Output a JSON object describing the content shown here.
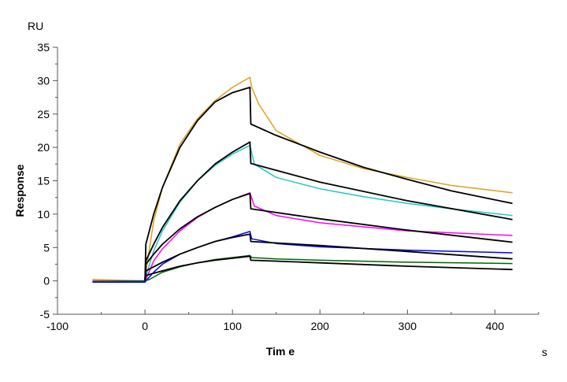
{
  "chart_data": {
    "type": "line",
    "title": "",
    "unit_label_y": "RU",
    "ylabel": "Response",
    "xlabel": "Tim e",
    "unit_label_x": "s",
    "xlim": [
      -100,
      450
    ],
    "ylim": [
      -5,
      35
    ],
    "x_ticks": [
      -100,
      0,
      100,
      200,
      300,
      400
    ],
    "x_minor_ticks": [
      -50,
      50,
      150,
      250,
      350,
      450
    ],
    "y_ticks": [
      -5,
      0,
      5,
      10,
      15,
      20,
      25,
      30,
      35
    ],
    "grid": false,
    "legend": "none",
    "series": [
      {
        "kind": "measured",
        "color": "#E0A020",
        "x": [
          -60,
          0,
          3,
          10,
          20,
          40,
          60,
          80,
          100,
          120,
          122,
          130,
          150,
          200,
          250,
          300,
          350,
          420
        ],
        "y": [
          0.2,
          0,
          3,
          9,
          14,
          20.5,
          24.3,
          27,
          29,
          30.5,
          29,
          26.5,
          22.5,
          18.8,
          16.8,
          15.5,
          14.3,
          13.2
        ]
      },
      {
        "kind": "fit",
        "color": "#000000",
        "x": [
          0,
          1,
          10,
          20,
          40,
          60,
          80,
          100,
          120,
          121,
          150,
          200,
          250,
          300,
          350,
          420
        ],
        "y": [
          0,
          5.5,
          10,
          14,
          20,
          24,
          26.8,
          28.2,
          29,
          23.5,
          21.8,
          19.3,
          17,
          15.2,
          13.5,
          11.6
        ]
      },
      {
        "kind": "measured",
        "color": "#20C8C8",
        "x": [
          -60,
          0,
          3,
          10,
          20,
          40,
          60,
          80,
          100,
          120,
          125,
          150,
          200,
          250,
          300,
          350,
          420
        ],
        "y": [
          0,
          0,
          1.5,
          4.5,
          7.5,
          11.8,
          15,
          17.3,
          19,
          20.3,
          17.5,
          15.5,
          13.8,
          12.6,
          11.6,
          10.8,
          9.8
        ]
      },
      {
        "kind": "fit",
        "color": "#000000",
        "x": [
          0,
          1,
          10,
          20,
          40,
          60,
          80,
          100,
          120,
          121,
          200,
          300,
          420
        ],
        "y": [
          0,
          3,
          5.5,
          8,
          12,
          15,
          17.5,
          19.3,
          20.8,
          17.6,
          14.8,
          12,
          9.2
        ]
      },
      {
        "kind": "measured",
        "color": "#FF00FF",
        "x": [
          -60,
          0,
          3,
          10,
          20,
          40,
          60,
          80,
          100,
          120,
          125,
          150,
          200,
          300,
          420
        ],
        "y": [
          0,
          0,
          0.8,
          3,
          4.8,
          7.5,
          9.5,
          11,
          12.2,
          13.2,
          11.2,
          9.8,
          8.7,
          7.5,
          6.8
        ]
      },
      {
        "kind": "fit",
        "color": "#000000",
        "x": [
          0,
          1,
          10,
          20,
          40,
          60,
          80,
          100,
          120,
          121,
          200,
          300,
          420
        ],
        "y": [
          0,
          2.5,
          4,
          5.5,
          7.8,
          9.6,
          11,
          12.2,
          13.1,
          10.8,
          9.3,
          7.6,
          5.8
        ]
      },
      {
        "kind": "measured",
        "color": "#0000FF",
        "x": [
          -60,
          0,
          3,
          10,
          20,
          40,
          60,
          80,
          100,
          120,
          122,
          150,
          200,
          300,
          420
        ],
        "y": [
          -0.2,
          -0.2,
          0.3,
          1.3,
          2.5,
          4,
          5,
          5.9,
          6.6,
          7.4,
          6.3,
          5.6,
          5.1,
          4.6,
          4.2
        ]
      },
      {
        "kind": "fit",
        "color": "#000000",
        "x": [
          0,
          1,
          20,
          40,
          60,
          80,
          100,
          120,
          121,
          200,
          300,
          420
        ],
        "y": [
          0,
          1.5,
          2.8,
          4,
          5,
          5.9,
          6.5,
          7,
          5.9,
          5.3,
          4.4,
          3.3
        ]
      },
      {
        "kind": "measured",
        "color": "#006400",
        "x": [
          -60,
          0,
          5,
          20,
          40,
          60,
          80,
          100,
          120,
          122,
          150,
          200,
          300,
          420
        ],
        "y": [
          -0.1,
          0,
          0.2,
          1.3,
          2.1,
          2.7,
          3.2,
          3.5,
          3.8,
          3.5,
          3.3,
          3.1,
          2.8,
          2.6
        ]
      },
      {
        "kind": "fit",
        "color": "#000000",
        "x": [
          0,
          1,
          20,
          40,
          60,
          80,
          100,
          120,
          121,
          200,
          300,
          420
        ],
        "y": [
          0,
          0.8,
          1.5,
          2.2,
          2.7,
          3.1,
          3.4,
          3.7,
          3.1,
          2.7,
          2.2,
          1.7
        ]
      }
    ]
  }
}
